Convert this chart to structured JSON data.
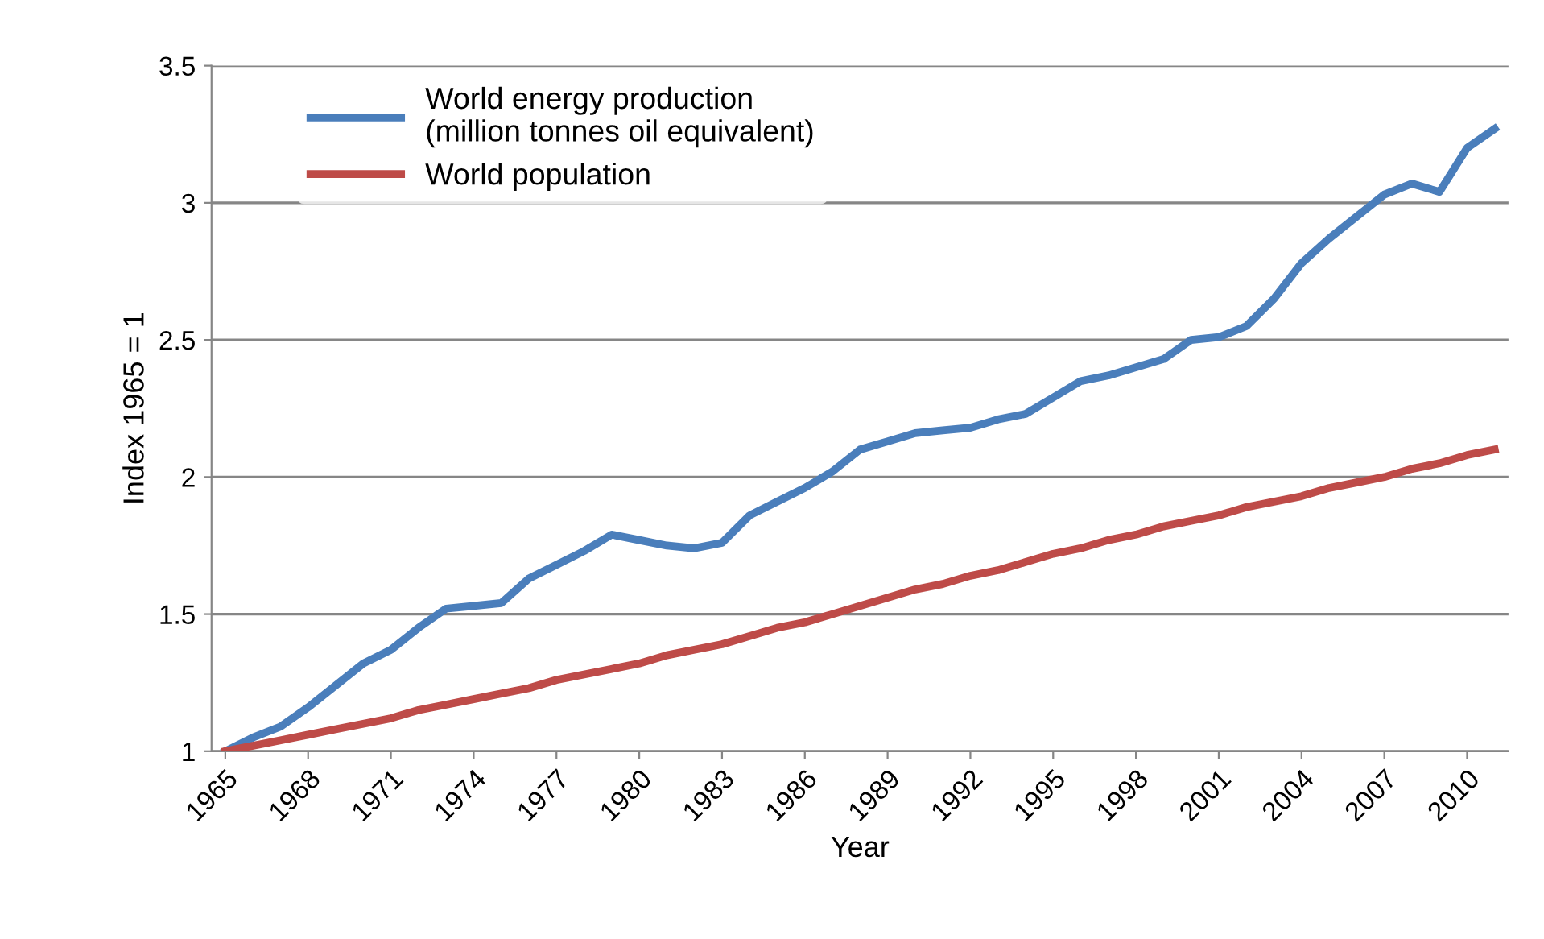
{
  "chart_data": {
    "type": "line",
    "xlabel": "Year",
    "ylabel": "Index 1965 = 1",
    "categories": [
      "1965",
      null,
      null,
      "1968",
      null,
      null,
      "1971",
      null,
      null,
      "1974",
      null,
      null,
      "1977",
      null,
      null,
      "1980",
      null,
      null,
      "1983",
      null,
      null,
      "1986",
      null,
      null,
      "1989",
      null,
      null,
      "1992",
      null,
      null,
      "1995",
      null,
      null,
      "1998",
      null,
      null,
      "2001",
      null,
      null,
      "2004",
      null,
      null,
      "2007",
      null,
      null,
      "2010",
      null
    ],
    "series": [
      {
        "name": "World energy production\n(million tonnes oil equivalent)",
        "color": "#4a7ebb",
        "values": [
          1.0,
          1.05,
          1.09,
          1.16,
          1.24,
          1.32,
          1.37,
          1.45,
          1.52,
          1.53,
          1.54,
          1.63,
          1.68,
          1.73,
          1.79,
          1.77,
          1.75,
          1.74,
          1.76,
          1.86,
          1.91,
          1.96,
          2.02,
          2.1,
          2.13,
          2.16,
          2.17,
          2.18,
          2.21,
          2.23,
          2.29,
          2.35,
          2.37,
          2.4,
          2.43,
          2.5,
          2.51,
          2.55,
          2.65,
          2.78,
          2.87,
          2.95,
          3.03,
          3.07,
          3.04,
          3.2,
          3.27
        ]
      },
      {
        "name": "World population",
        "color": "#be4b48",
        "values": [
          1.0,
          1.02,
          1.04,
          1.06,
          1.08,
          1.1,
          1.12,
          1.15,
          1.17,
          1.19,
          1.21,
          1.23,
          1.26,
          1.28,
          1.3,
          1.32,
          1.35,
          1.37,
          1.39,
          1.42,
          1.45,
          1.47,
          1.5,
          1.53,
          1.56,
          1.59,
          1.61,
          1.64,
          1.66,
          1.69,
          1.72,
          1.74,
          1.77,
          1.79,
          1.82,
          1.84,
          1.86,
          1.89,
          1.91,
          1.93,
          1.96,
          1.98,
          2.0,
          2.03,
          2.05,
          2.08,
          2.1
        ]
      }
    ],
    "ylim": [
      1,
      3.5
    ],
    "yticks": [
      {
        "value": 1,
        "label": "1"
      },
      {
        "value": 1.5,
        "label": "1.5"
      },
      {
        "value": 2,
        "label": "2"
      },
      {
        "value": 2.5,
        "label": "2.5"
      },
      {
        "value": 3,
        "label": "3"
      },
      {
        "value": 3.5,
        "label": "3.5"
      }
    ],
    "grid": "y",
    "legend": "top left",
    "marker": "none",
    "line_style": "solid"
  }
}
